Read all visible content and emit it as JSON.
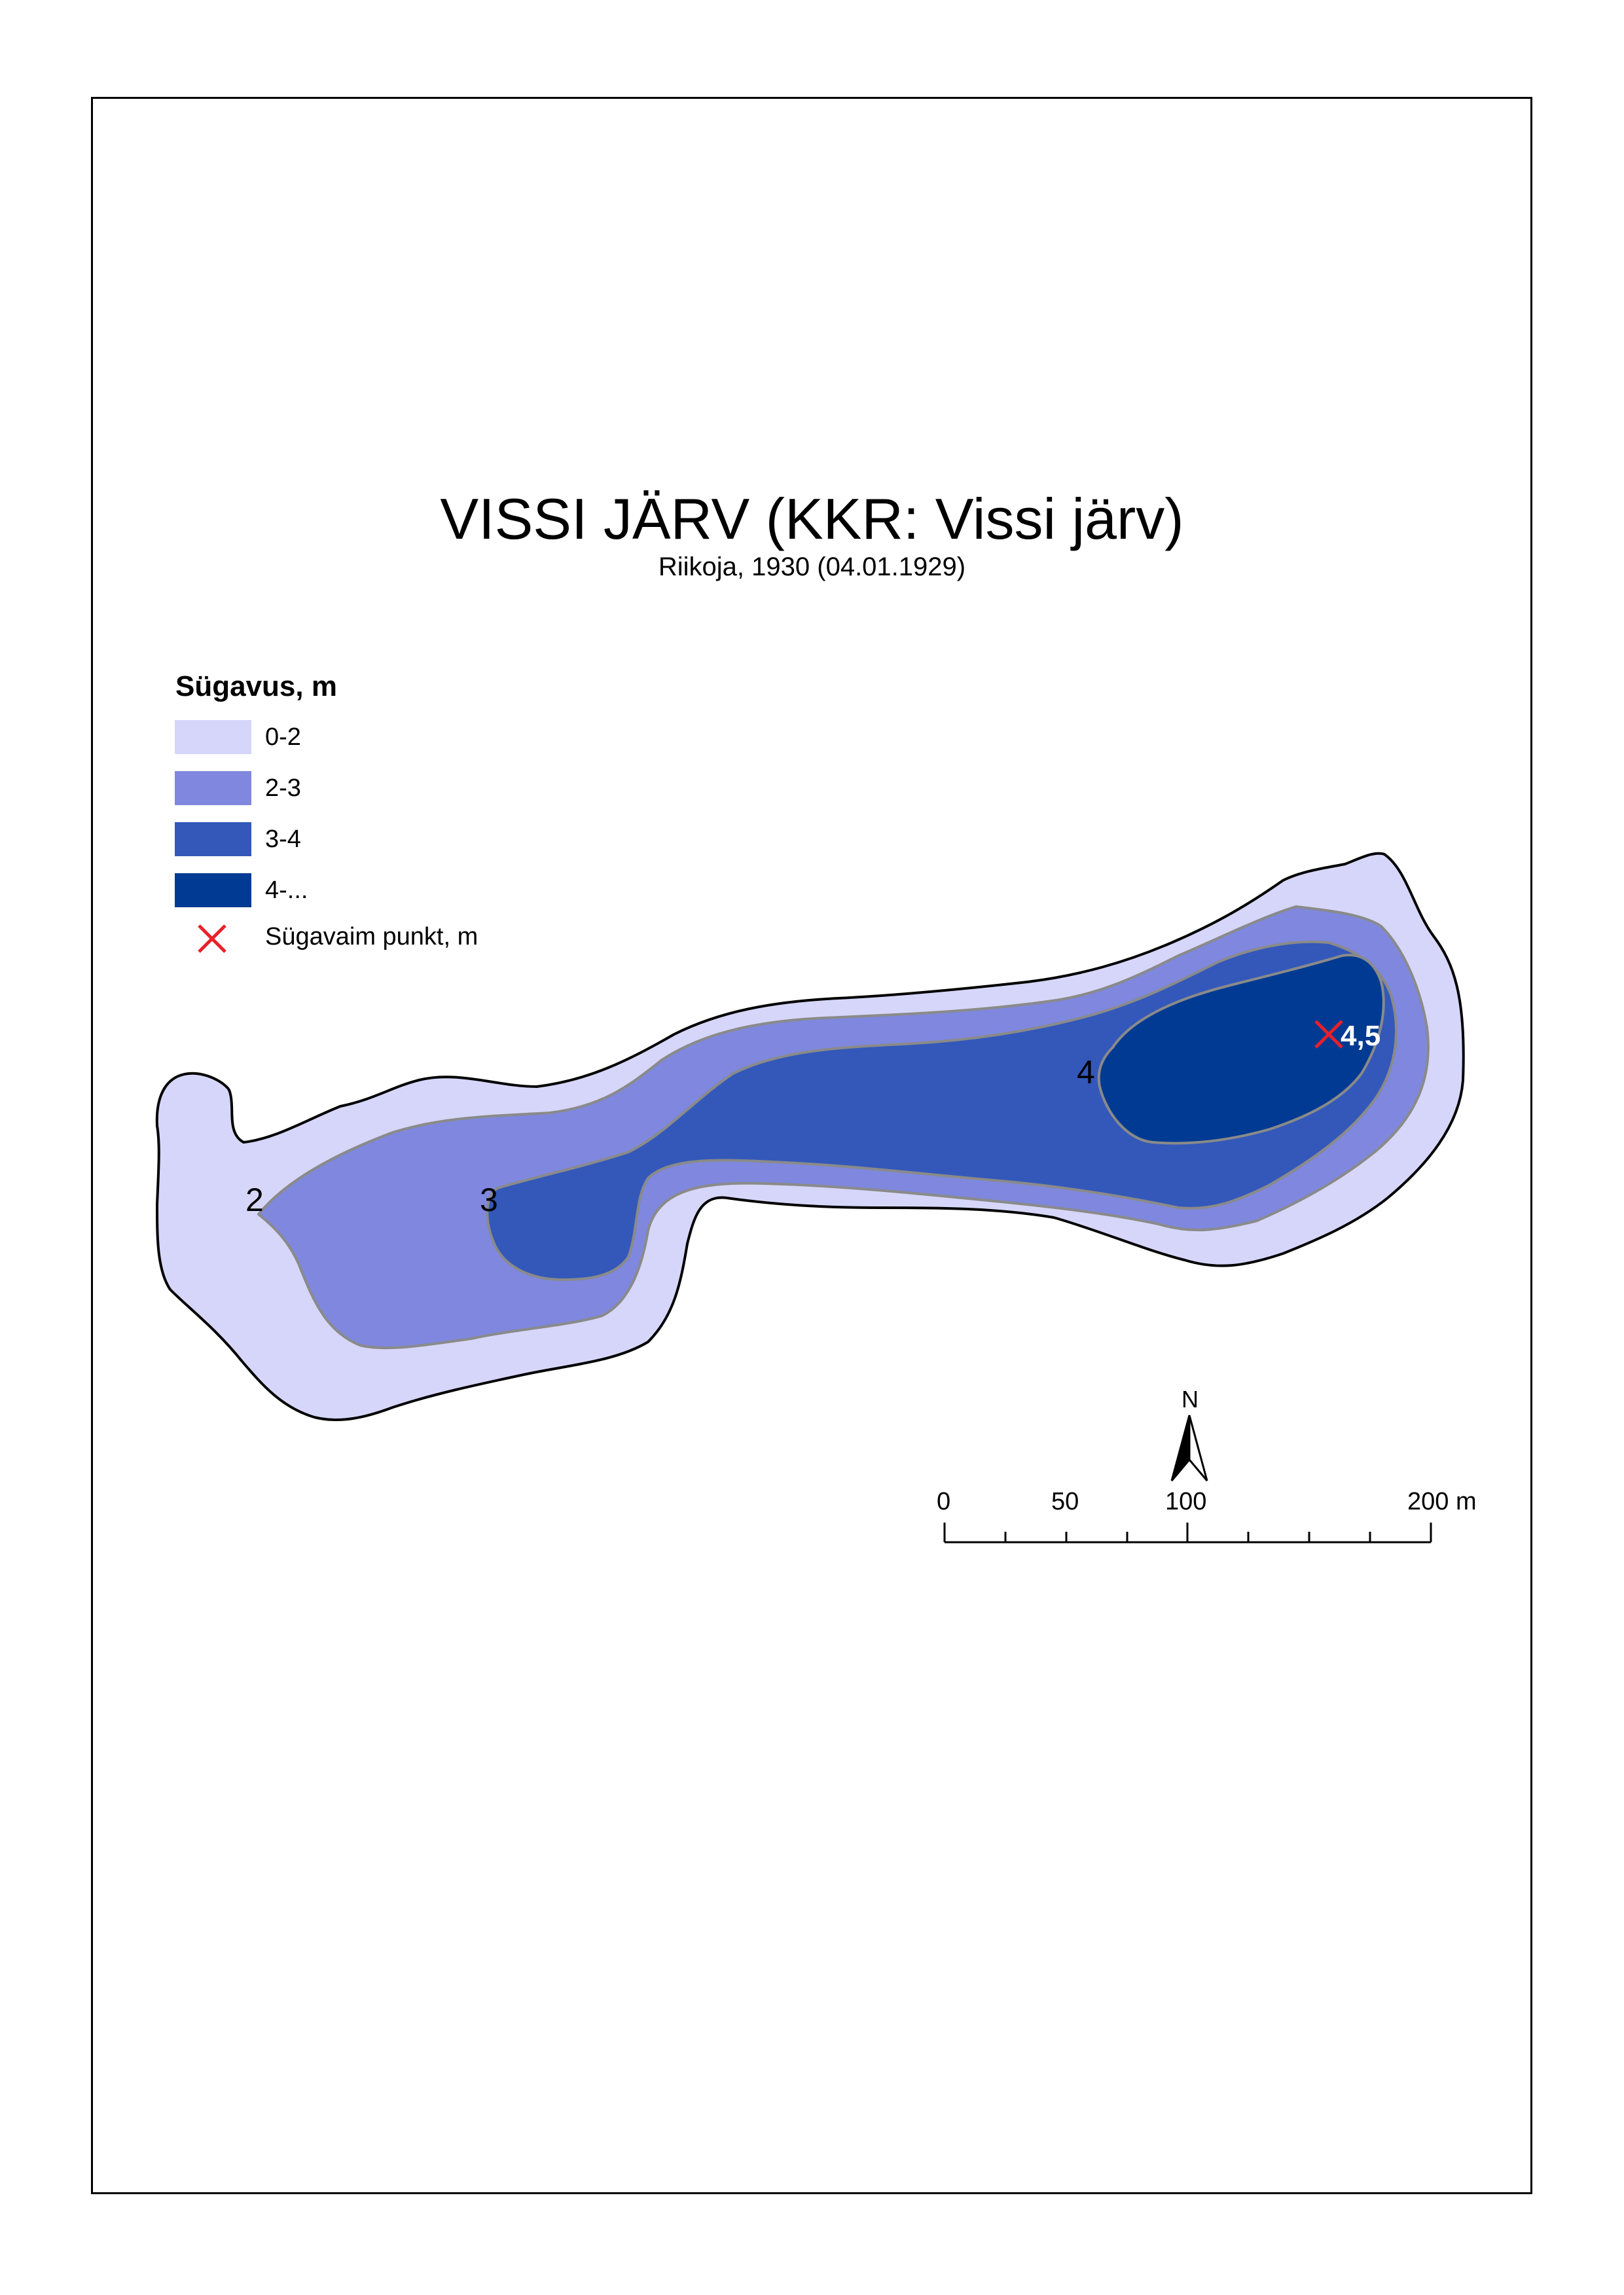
{
  "title": "VISSI JÄRV (KKR: Vissi järv)",
  "subtitle": "Riikoja, 1930 (04.01.1929)",
  "legend": {
    "title": "Sügavus, m",
    "items": [
      {
        "label": "0-2",
        "color": "#d6d6fa"
      },
      {
        "label": "2-3",
        "color": "#7f88de"
      },
      {
        "label": "3-4",
        "color": "#3358ba"
      },
      {
        "label": "4-...",
        "color": "#003a92"
      }
    ],
    "deepest_label": "Sügavaim punkt, m",
    "deepest_color": "#e8202a"
  },
  "map_labels": {
    "contour_2": "2",
    "contour_3": "3",
    "contour_4": "4",
    "deepest_value": "4,5"
  },
  "north_arrow": "N",
  "scale_bar": {
    "ticks": [
      "0",
      "50",
      "100",
      "200 m"
    ]
  }
}
